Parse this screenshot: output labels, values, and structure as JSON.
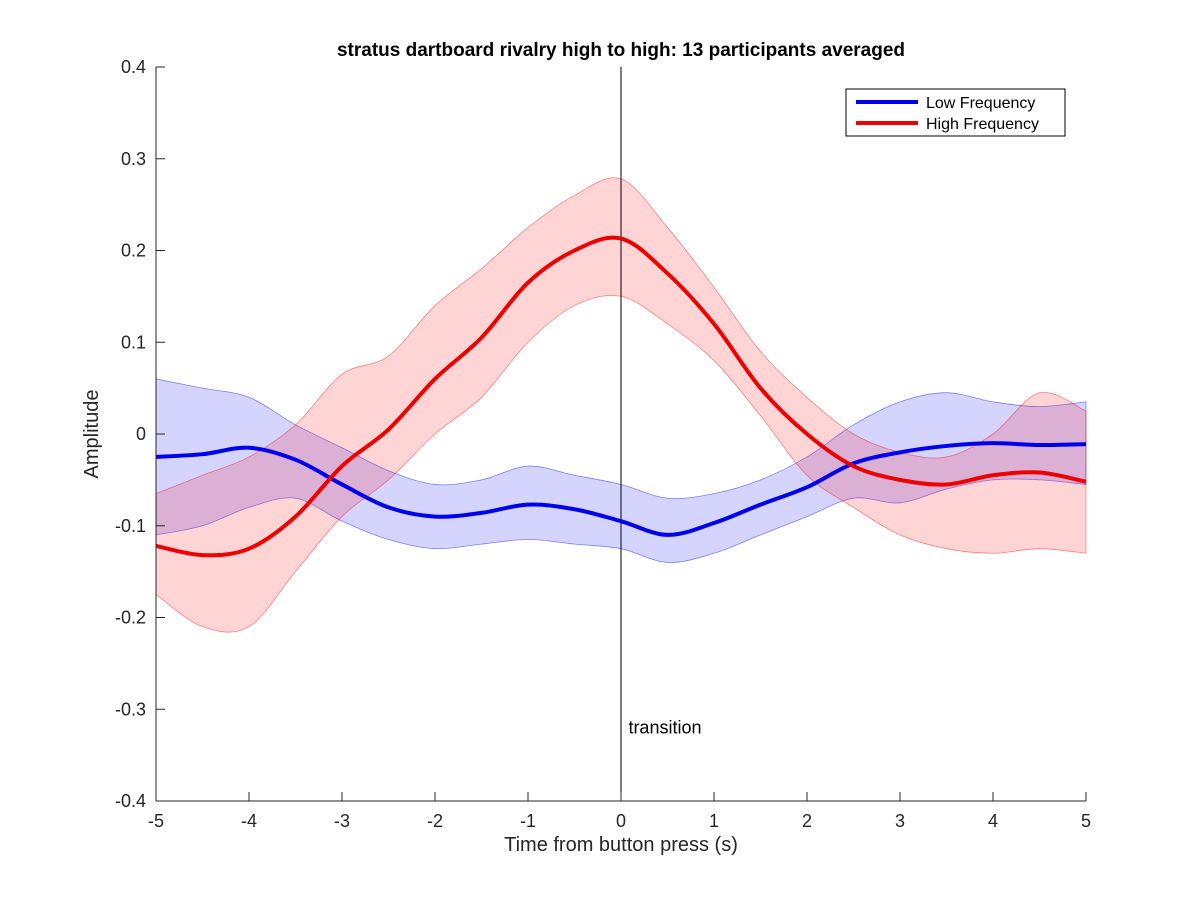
{
  "chart_data": {
    "type": "line",
    "title": "stratus dartboard rivalry high to high: 13 participants averaged",
    "xlabel": "Time from button press (s)",
    "ylabel": "Amplitude",
    "xlim": [
      -5,
      5
    ],
    "ylim": [
      -0.4,
      0.4
    ],
    "xticks": [
      -5,
      -4,
      -3,
      -2,
      -1,
      0,
      1,
      2,
      3,
      4,
      5
    ],
    "yticks": [
      -0.4,
      -0.3,
      -0.2,
      -0.1,
      0,
      0.1,
      0.2,
      0.3,
      0.4
    ],
    "xtick_labels": [
      "-5",
      "-4",
      "-3",
      "-2",
      "-1",
      "0",
      "1",
      "2",
      "3",
      "4",
      "5"
    ],
    "ytick_labels": [
      "-0.4",
      "-0.3",
      "-0.2",
      "-0.1",
      "0",
      "0.1",
      "0.2",
      "0.3",
      "0.4"
    ],
    "grid": false,
    "legend_position": "top-right",
    "annotations": [
      {
        "text": "transition",
        "x": 0.08,
        "y": -0.32
      }
    ],
    "vertical_line_x": 0,
    "x": [
      -5,
      -4.5,
      -4,
      -3.5,
      -3,
      -2.5,
      -2,
      -1.5,
      -1,
      -0.5,
      0,
      0.5,
      1,
      1.5,
      2,
      2.5,
      3,
      3.5,
      4,
      4.5,
      5
    ],
    "series": [
      {
        "name": "Low Frequency",
        "color": "#0000ee",
        "values": [
          -0.025,
          -0.022,
          -0.015,
          -0.028,
          -0.055,
          -0.08,
          -0.09,
          -0.086,
          -0.077,
          -0.082,
          -0.095,
          -0.11,
          -0.097,
          -0.077,
          -0.058,
          -0.032,
          -0.02,
          -0.013,
          -0.01,
          -0.012,
          -0.011
        ],
        "band_upper": [
          0.06,
          0.05,
          0.04,
          0.01,
          -0.015,
          -0.04,
          -0.055,
          -0.05,
          -0.035,
          -0.045,
          -0.055,
          -0.07,
          -0.065,
          -0.05,
          -0.025,
          0.01,
          0.035,
          0.045,
          0.035,
          0.03,
          0.035
        ],
        "band_lower": [
          -0.11,
          -0.1,
          -0.08,
          -0.07,
          -0.095,
          -0.115,
          -0.125,
          -0.12,
          -0.115,
          -0.12,
          -0.125,
          -0.14,
          -0.13,
          -0.11,
          -0.09,
          -0.07,
          -0.075,
          -0.06,
          -0.05,
          -0.05,
          -0.055
        ]
      },
      {
        "name": "High Frequency",
        "color": "#ee0000",
        "values": [
          -0.122,
          -0.132,
          -0.125,
          -0.09,
          -0.035,
          0.005,
          0.06,
          0.105,
          0.165,
          0.2,
          0.213,
          0.175,
          0.12,
          0.05,
          0.0,
          -0.035,
          -0.05,
          -0.055,
          -0.045,
          -0.042,
          -0.052
        ],
        "band_upper": [
          -0.065,
          -0.045,
          -0.025,
          0.01,
          0.065,
          0.085,
          0.14,
          0.18,
          0.225,
          0.26,
          0.278,
          0.225,
          0.16,
          0.09,
          0.04,
          0.0,
          -0.02,
          -0.025,
          -0.0,
          0.045,
          0.025
        ],
        "band_lower": [
          -0.175,
          -0.21,
          -0.21,
          -0.15,
          -0.09,
          -0.05,
          0.0,
          0.04,
          0.1,
          0.14,
          0.15,
          0.12,
          0.08,
          0.02,
          -0.045,
          -0.08,
          -0.11,
          -0.125,
          -0.13,
          -0.125,
          -0.13
        ]
      }
    ]
  }
}
